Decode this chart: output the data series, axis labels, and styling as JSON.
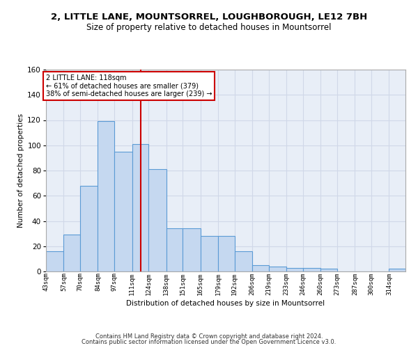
{
  "title": "2, LITTLE LANE, MOUNTSORREL, LOUGHBOROUGH, LE12 7BH",
  "subtitle": "Size of property relative to detached houses in Mountsorrel",
  "xlabel": "Distribution of detached houses by size in Mountsorrel",
  "ylabel": "Number of detached properties",
  "footer_line1": "Contains HM Land Registry data © Crown copyright and database right 2024.",
  "footer_line2": "Contains public sector information licensed under the Open Government Licence v3.0.",
  "categories": [
    "43sqm",
    "57sqm",
    "70sqm",
    "84sqm",
    "97sqm",
    "111sqm",
    "124sqm",
    "138sqm",
    "151sqm",
    "165sqm",
    "179sqm",
    "192sqm",
    "206sqm",
    "219sqm",
    "233sqm",
    "246sqm",
    "260sqm",
    "273sqm",
    "287sqm",
    "300sqm",
    "314sqm"
  ],
  "values": [
    16,
    29,
    68,
    119,
    95,
    101,
    81,
    34,
    34,
    28,
    28,
    16,
    5,
    4,
    3,
    3,
    2,
    0,
    0,
    0,
    2
  ],
  "bar_color": "#c5d8f0",
  "bar_edge_color": "#5b9bd5",
  "reference_line_x": 118,
  "reference_line_label": "2 LITTLE LANE: 118sqm",
  "annotation_line1": "← 61% of detached houses are smaller (379)",
  "annotation_line2": "38% of semi-detached houses are larger (239) →",
  "annotation_box_facecolor": "#ffffff",
  "annotation_box_edgecolor": "#cc0000",
  "vline_color": "#cc0000",
  "ylim": [
    0,
    160
  ],
  "yticks": [
    0,
    20,
    40,
    60,
    80,
    100,
    120,
    140,
    160
  ],
  "grid_color": "#d0d8e8",
  "background_color": "#e8eef7",
  "bin_edges": [
    43,
    57,
    70,
    84,
    97,
    111,
    124,
    138,
    151,
    165,
    179,
    192,
    206,
    219,
    233,
    246,
    260,
    273,
    287,
    300,
    314,
    327
  ]
}
